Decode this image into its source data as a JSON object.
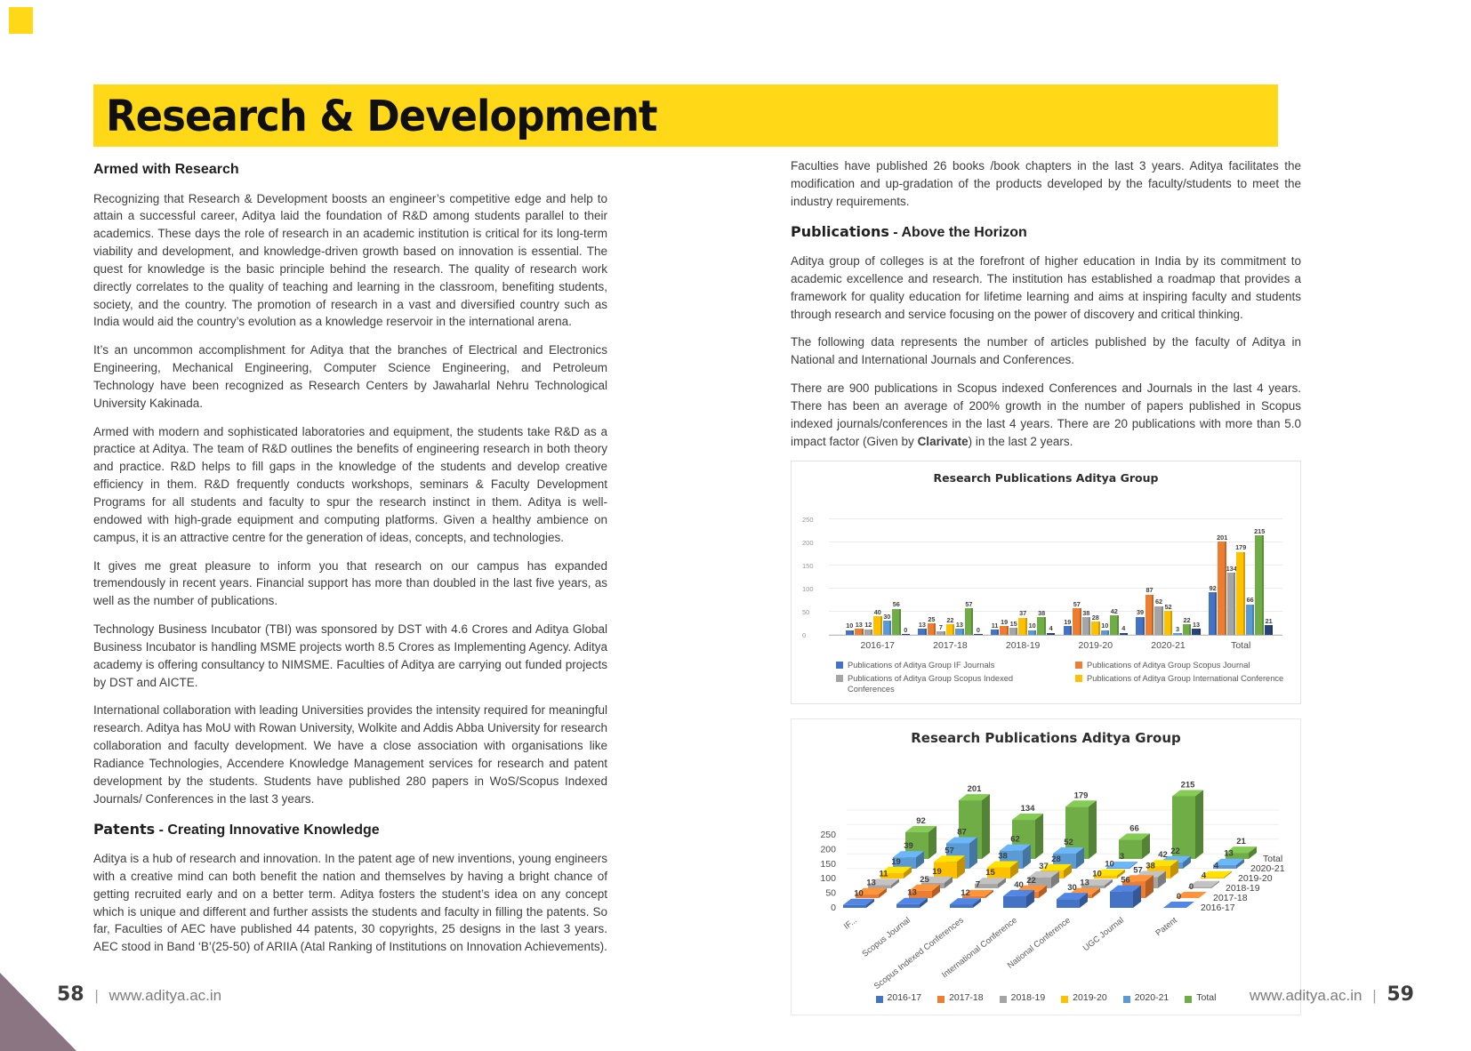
{
  "banner": {
    "title": "Research & Development"
  },
  "left_column": {
    "heading1": "Armed with Research",
    "p1": "Recognizing that Research & Development boosts an engineer’s competitive edge and help to attain a successful career, Aditya laid the foundation of R&D among students parallel to their academics. These days the role of research in an academic institution is critical for its long-term viability and development, and knowledge-driven growth based on innovation is essential. The quest for knowledge is the basic principle behind the research. The quality of research work directly correlates to the quality of teaching and learning in the classroom, benefiting students, society, and the country. The promotion of research in a vast and diversified country such as India would aid the country’s evolution as a knowledge reservoir in the international arena.",
    "p2": "It’s an uncommon accomplishment for Aditya that the branches of Electrical and Electronics Engineering, Mechanical Engineering, Computer Science Engineering, and Petroleum Technology have been recognized as Research Centers by Jawaharlal Nehru Technological University Kakinada.",
    "p3": "Armed with modern and sophisticated laboratories and equipment, the students take R&D as a practice at Aditya. The team of R&D outlines the benefits of engineering research in both theory and practice. R&D helps to fill gaps in the knowledge of the students and develop creative efficiency in them. R&D frequently conducts workshops, seminars & Faculty Development Programs for all students and faculty to spur the research instinct in them. Aditya is well-endowed with high-grade equipment and computing platforms. Given a healthy ambience on campus, it is an attractive centre for the generation of ideas, concepts, and technologies.",
    "p4": "It gives me great pleasure to inform you that research on our campus has expanded tremendously in recent years. Financial support has more than doubled in the last five years, as well as the number of publications.",
    "p5": "Technology Business Incubator (TBI) was sponsored by DST with 4.6 Crores and Aditya Global Business Incubator is handling MSME projects worth 8.5 Crores as Implementing Agency. Aditya academy is offering consultancy to NIMSME. Faculties of Aditya are carrying out funded projects by DST and AICTE.",
    "p6": "International collaboration with leading Universities provides the intensity required for meaningful research. Aditya has MoU with Rowan University, Wolkite and Addis Abba University for research collaboration and faculty development. We have a close association with organisations like Radiance Technologies, Accendere Knowledge Management services for research and patent development by the students.  Students have published 280 papers in WoS/Scopus Indexed Journals/ Conferences in the last 3 years.",
    "heading2_bold": "Patents",
    "heading2_rest": " - Creating Innovative Knowledge",
    "p7": "Aditya is a hub of research and innovation. In the patent age of new inventions, young engineers with a creative mind can both benefit the nation and themselves by having a bright chance of getting recruited early and on a better term. Aditya fosters the student’s idea on any concept which is unique and different and further assists the students and faculty in filling the patents. So far, Faculties of AEC have published 44 patents, 30 copyrights, 25 designs in the last 3 years. AEC stood in Band ‘B’(25-50) of ARIIA (Atal Ranking of Institutions on Innovation Achievements)."
  },
  "right_column": {
    "p8": "Faculties have published 26 books /book chapters in the last 3 years. Aditya facilitates the modification and up-gradation of the products developed by the faculty/students to meet the industry requirements.",
    "heading3_bold": "Publications",
    "heading3_rest": " - Above the Horizon",
    "p9": "Aditya group of colleges is at the forefront of higher education in India by its commitment to academic excellence and research. The institution has established a roadmap that provides a framework for quality education for lifetime learning and aims at inspiring faculty and students through research and service focusing on the power of discovery and critical thinking.",
    "p10": "The following data represents the number of articles published by the faculty of Aditya in National and International Journals and Conferences.",
    "p11_pre": "There are 900 publications in Scopus indexed Conferences and Journals in the last 4 years. There has been an average of 200% growth in the number of papers published in Scopus indexed journals/conferences in the last 4 years. There are 20 publications with more than 5.0 impact factor (Given by ",
    "p11_bold": "Clarivate",
    "p11_post": ") in the last 2 years."
  },
  "chart_data": [
    {
      "type": "bar",
      "title": "Research Publications Aditya Group",
      "categories": [
        "2016-17",
        "2017-18",
        "2018-19",
        "2019-20",
        "2020-21",
        "Total"
      ],
      "series": [
        {
          "name": "Publications of Aditya Group IF Journals",
          "color": "#4472c4",
          "values": [
            10,
            13,
            11,
            19,
            39,
            92
          ]
        },
        {
          "name": "Publications of Aditya Group Scopus Journal",
          "color": "#ed7d31",
          "values": [
            13,
            25,
            19,
            57,
            87,
            201
          ]
        },
        {
          "name": "Publications of Aditya Group Scopus Indexed Conferences",
          "color": "#a5a5a5",
          "values": [
            12,
            7,
            15,
            38,
            62,
            134
          ]
        },
        {
          "name": "Publications of Aditya Group International Conference",
          "color": "#ffc000",
          "values": [
            40,
            22,
            37,
            28,
            52,
            179
          ]
        },
        {
          "name": "National Conference",
          "color": "#5b9bd5",
          "values": [
            30,
            13,
            10,
            10,
            3,
            66
          ]
        },
        {
          "name": "UGC Journal",
          "color": "#70ad47",
          "values": [
            56,
            57,
            38,
            42,
            22,
            215
          ]
        },
        {
          "name": "Patent",
          "color": "#264478",
          "values": [
            0,
            0,
            4,
            4,
            13,
            21
          ]
        }
      ],
      "ylim": [
        0,
        250
      ],
      "yticks": [
        0,
        50,
        100,
        150,
        200,
        250
      ],
      "grid": true,
      "legend_position": "bottom",
      "legend_visible_count": 4
    },
    {
      "type": "bar3d",
      "title": "Research Publications Aditya Group",
      "categories": [
        "IF...",
        "Scopus Journal",
        "Scopus Indexed Conferences",
        "International Conference",
        "National Conference",
        "UGC Journal",
        "Patent"
      ],
      "series": [
        {
          "name": "2016-17",
          "color": "#4472c4",
          "values": [
            10,
            13,
            12,
            40,
            30,
            56,
            0
          ]
        },
        {
          "name": "2017-18",
          "color": "#ed7d31",
          "values": [
            13,
            25,
            7,
            22,
            13,
            57,
            0
          ]
        },
        {
          "name": "2018-19",
          "color": "#a5a5a5",
          "values": [
            11,
            19,
            15,
            37,
            10,
            38,
            4
          ]
        },
        {
          "name": "2019-20",
          "color": "#ffc000",
          "values": [
            19,
            57,
            38,
            28,
            10,
            42,
            4
          ]
        },
        {
          "name": "2020-21",
          "color": "#5b9bd5",
          "values": [
            39,
            87,
            62,
            52,
            3,
            22,
            13
          ]
        },
        {
          "name": "Total",
          "color": "#70ad47",
          "values": [
            92,
            201,
            134,
            179,
            66,
            215,
            21
          ]
        }
      ],
      "ylim": [
        0,
        250
      ],
      "yticks": [
        0,
        50,
        100,
        150,
        200,
        250
      ],
      "grid": true,
      "legend_position": "bottom"
    }
  ],
  "footer": {
    "left_page_number": "58",
    "right_page_number": "59",
    "site_url": "www.aditya.ac.in",
    "divider": "|"
  },
  "accent_colors": {
    "banner_yellow": "#ffd917",
    "corner_triangle_mauve": "#8b7583"
  }
}
